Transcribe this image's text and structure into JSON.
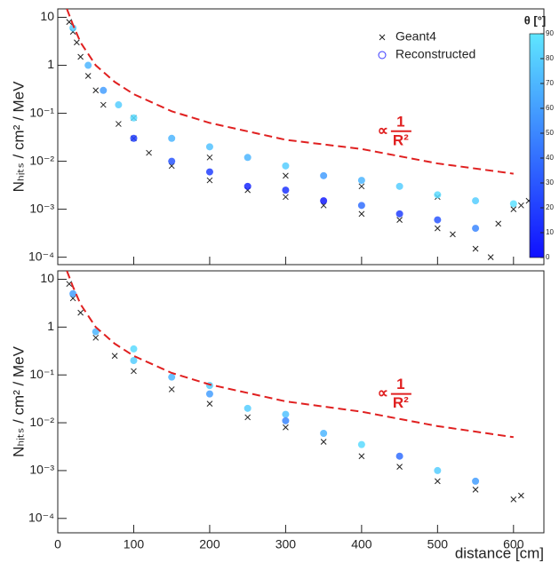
{
  "chart_data": [
    {
      "type": "scatter",
      "y_label": "Nₕᵢₜₛ / cm² / MeV",
      "log_y": true,
      "xlim": [
        0,
        640
      ],
      "xticks": [
        0,
        100,
        200,
        300,
        400,
        500,
        600
      ],
      "ylim": [
        7e-05,
        15
      ],
      "yticks": [
        {
          "value": 0.0001,
          "label": "10⁻⁴"
        },
        {
          "value": 0.001,
          "label": "10⁻³"
        },
        {
          "value": 0.01,
          "label": "10⁻²"
        },
        {
          "value": 0.1,
          "label": "10⁻¹"
        },
        1,
        10
      ],
      "colorscale": [
        "#1010ff",
        "#5fe6ff"
      ],
      "colorbar": {
        "title": "θ [°]",
        "lim": [
          0,
          90
        ],
        "ticks": [
          0,
          10,
          20,
          30,
          40,
          50,
          60,
          70,
          80,
          90
        ]
      },
      "series": [
        {
          "name": "Geant4",
          "marker": "x",
          "color": "#222222",
          "x": [
            15,
            20,
            25,
            30,
            40,
            50,
            60,
            80,
            100,
            120,
            150,
            200,
            250,
            300,
            350,
            400,
            450,
            500,
            520,
            550,
            570,
            580,
            600,
            610,
            620,
            300,
            400,
            500,
            200,
            100
          ],
          "values": [
            8,
            5,
            3,
            1.5,
            0.6,
            0.3,
            0.15,
            0.06,
            0.03,
            0.015,
            0.008,
            0.004,
            0.0025,
            0.0018,
            0.0012,
            0.0008,
            0.0006,
            0.0004,
            0.0003,
            0.00015,
            0.0001,
            0.0005,
            0.001,
            0.0012,
            0.0015,
            0.005,
            0.003,
            0.0018,
            0.012,
            0.08
          ]
        },
        {
          "name": "Reconstructed",
          "marker": "o",
          "color": "#3a3aff",
          "x": [
            20,
            40,
            60,
            80,
            100,
            100,
            150,
            150,
            200,
            200,
            250,
            250,
            300,
            300,
            350,
            350,
            400,
            400,
            450,
            450,
            500,
            500,
            550,
            550,
            600
          ],
          "values": [
            6,
            1,
            0.3,
            0.15,
            0.08,
            0.03,
            0.03,
            0.01,
            0.02,
            0.006,
            0.012,
            0.003,
            0.008,
            0.0025,
            0.005,
            0.0015,
            0.004,
            0.0012,
            0.003,
            0.0008,
            0.002,
            0.0006,
            0.0015,
            0.0004,
            0.0013
          ],
          "theta": [
            80,
            70,
            60,
            80,
            85,
            20,
            70,
            30,
            75,
            20,
            70,
            10,
            80,
            15,
            60,
            5,
            70,
            40,
            80,
            20,
            85,
            30,
            80,
            50,
            88
          ]
        }
      ],
      "reference": {
        "color": "#e02020",
        "x": [
          12,
          20,
          30,
          50,
          75,
          100,
          150,
          200,
          300,
          400,
          500,
          600
        ],
        "values": [
          15,
          7,
          3,
          1,
          0.45,
          0.25,
          0.11,
          0.063,
          0.028,
          0.018,
          0.009,
          0.0055
        ]
      },
      "annotation": {
        "prefix": "∝",
        "numerator": "1",
        "denominator": "R²"
      }
    },
    {
      "type": "scatter",
      "y_label": "Nₕᵢₜₛ / cm² / MeV",
      "x_label": "distance [cm]",
      "log_y": true,
      "xlim": [
        0,
        640
      ],
      "xticks": [
        0,
        100,
        200,
        300,
        400,
        500,
        600
      ],
      "ylim": [
        5e-05,
        15
      ],
      "yticks": [
        {
          "value": 0.0001,
          "label": "10⁻⁴"
        },
        {
          "value": 0.001,
          "label": "10⁻³"
        },
        {
          "value": 0.01,
          "label": "10⁻²"
        },
        {
          "value": 0.1,
          "label": "10⁻¹"
        },
        1,
        10
      ],
      "colorscale": [
        "#1010ff",
        "#5fe6ff"
      ],
      "series": [
        {
          "name": "Geant4",
          "marker": "x",
          "color": "#222222",
          "x": [
            15,
            20,
            30,
            50,
            75,
            100,
            150,
            200,
            250,
            300,
            350,
            400,
            450,
            500,
            550,
            600,
            610
          ],
          "values": [
            8,
            4,
            2,
            0.6,
            0.25,
            0.12,
            0.05,
            0.025,
            0.013,
            0.008,
            0.004,
            0.002,
            0.0012,
            0.0006,
            0.0004,
            0.00025,
            0.0003
          ]
        },
        {
          "name": "Reconstructed",
          "marker": "o",
          "color": "#3a3aff",
          "x": [
            20,
            50,
            100,
            100,
            150,
            200,
            200,
            250,
            300,
            300,
            350,
            400,
            450,
            500,
            550
          ],
          "values": [
            5,
            0.8,
            0.35,
            0.2,
            0.09,
            0.06,
            0.04,
            0.02,
            0.015,
            0.011,
            0.006,
            0.0035,
            0.002,
            0.001,
            0.0006
          ],
          "theta": [
            60,
            70,
            85,
            80,
            70,
            80,
            60,
            80,
            75,
            50,
            70,
            85,
            40,
            80,
            60
          ]
        }
      ],
      "reference": {
        "color": "#e02020",
        "x": [
          12,
          20,
          30,
          50,
          75,
          100,
          150,
          200,
          300,
          400,
          500,
          600
        ],
        "values": [
          15,
          7,
          3,
          1,
          0.45,
          0.25,
          0.11,
          0.063,
          0.028,
          0.017,
          0.0085,
          0.005
        ]
      },
      "annotation": {
        "prefix": "∝",
        "numerator": "1",
        "denominator": "R²"
      }
    }
  ]
}
